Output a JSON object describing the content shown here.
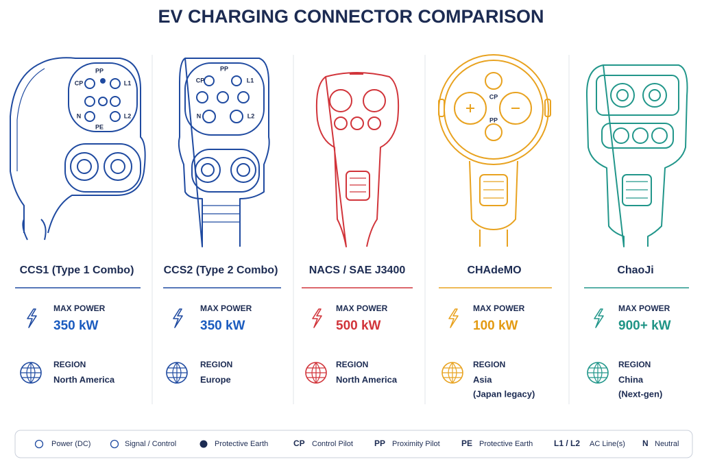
{
  "title": "EV CHARGING CONNECTOR COMPARISON",
  "connectors": [
    {
      "name": "CCS1 (Type 1 Combo)",
      "color": "#1f4aa0",
      "value_color": "#1a5bbf",
      "pin_labels": [
        "PP",
        "CP",
        "L1",
        "N",
        "L2",
        "PE"
      ],
      "power_label": "MAX POWER",
      "power": "350 kW",
      "region_label": "REGION",
      "region": [
        "North America"
      ]
    },
    {
      "name": "CCS2 (Type 2 Combo)",
      "color": "#1f4aa0",
      "value_color": "#1a5bbf",
      "pin_labels": [
        "PP",
        "CP",
        "L1",
        "N",
        "L2"
      ],
      "power_label": "MAX POWER",
      "power": "350 kW",
      "region_label": "REGION",
      "region": [
        "Europe"
      ]
    },
    {
      "name": "NACS / SAE J3400",
      "color": "#d1343a",
      "value_color": "#d1343a",
      "pin_labels": [],
      "power_label": "MAX POWER",
      "power": "500 kW",
      "region_label": "REGION",
      "region": [
        "North America"
      ]
    },
    {
      "name": "CHAdeMO",
      "color": "#e8a21f",
      "value_color": "#e39a12",
      "pin_labels": [
        "CP",
        "PP"
      ],
      "power_label": "MAX POWER",
      "power": "100 kW",
      "region_label": "REGION",
      "region": [
        "Asia",
        "(Japan legacy)"
      ]
    },
    {
      "name": "ChaoJi",
      "color": "#21968a",
      "value_color": "#1f9486",
      "pin_labels": [],
      "power_label": "MAX POWER",
      "power": "900+ kW",
      "region_label": "REGION",
      "region": [
        "China",
        "(Next-gen)"
      ]
    }
  ],
  "legend": [
    {
      "label": "Power (DC)"
    },
    {
      "label": "Signal / Control"
    },
    {
      "label": "Protective Earth"
    },
    {
      "key": "CP",
      "label": "Control Pilot"
    },
    {
      "key": "PP",
      "label": "Proximity Pilot"
    },
    {
      "key": "PE",
      "label": "Protective Earth"
    },
    {
      "key": "L1 / L2",
      "label": "AC Line(s)"
    },
    {
      "key": "N",
      "label": "Neutral"
    }
  ]
}
